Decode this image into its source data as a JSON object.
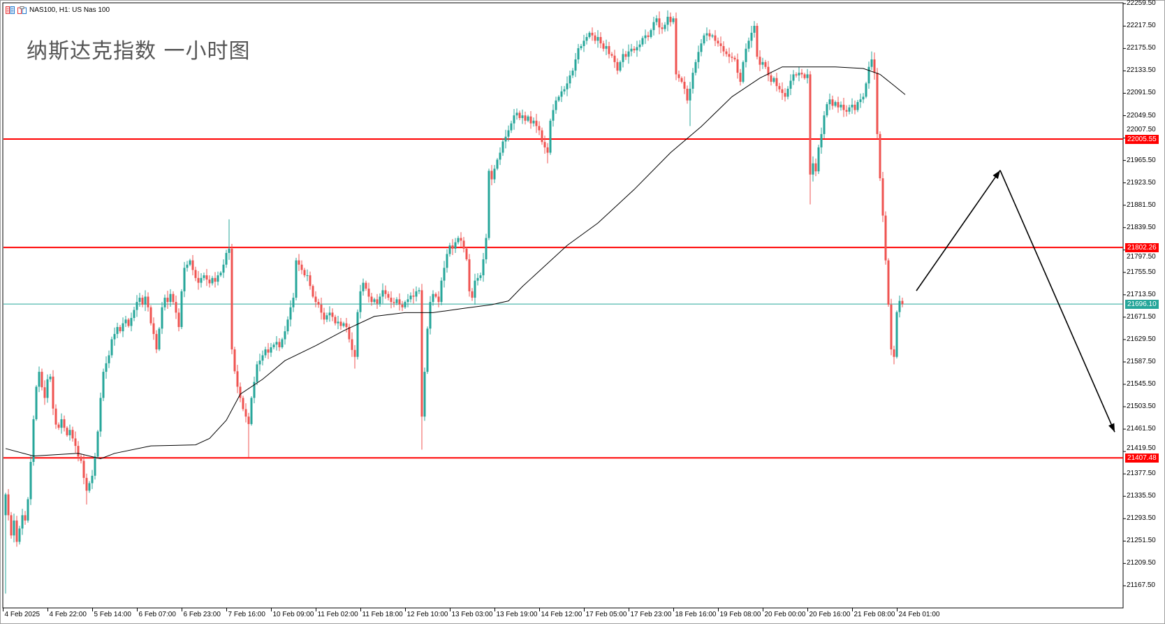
{
  "window": {
    "symbol_title": "NAS100, H1:  US Nas 100",
    "headline": "纳斯达克指数 一小时图"
  },
  "colors": {
    "bull": "#26a69a",
    "bear": "#ef5350",
    "level": "#ff0000",
    "current": "#26a69a",
    "ma": "#000000"
  },
  "chart_data": {
    "type": "candlestick",
    "timeframe": "H1",
    "ylim": [
      21147,
      22262
    ],
    "y_ticks": [
      "22259.50",
      "22217.50",
      "22175.50",
      "22133.50",
      "22091.50",
      "22049.50",
      "22007.50",
      "21965.50",
      "21923.50",
      "21881.50",
      "21839.50",
      "21797.50",
      "21755.50",
      "21713.50",
      "21671.50",
      "21629.50",
      "21587.50",
      "21545.50",
      "21503.50",
      "21461.50",
      "21419.50",
      "21377.50",
      "21335.50",
      "21293.50",
      "21251.50",
      "21209.50",
      "21167.50"
    ],
    "x_ticks": [
      "4 Feb 2025",
      "4 Feb 22:00",
      "5 Feb 14:00",
      "6 Feb 07:00",
      "6 Feb 23:00",
      "7 Feb 16:00",
      "10 Feb 09:00",
      "11 Feb 02:00",
      "11 Feb 18:00",
      "12 Feb 10:00",
      "13 Feb 03:00",
      "13 Feb 19:00",
      "14 Feb 12:00",
      "17 Feb 05:00",
      "17 Feb 23:00",
      "18 Feb 16:00",
      "19 Feb 08:00",
      "20 Feb 00:00",
      "20 Feb 16:00",
      "21 Feb 08:00",
      "24 Feb 01:00"
    ],
    "first_open": 21300,
    "closes": [
      21339,
      21300,
      21262,
      21290,
      21250,
      21275,
      21300,
      21290,
      21330,
      21400,
      21480,
      21541,
      21569,
      21540,
      21520,
      21555,
      21560,
      21500,
      21470,
      21464,
      21480,
      21464,
      21450,
      21460,
      21444,
      21430,
      21410,
      21402,
      21370,
      21346,
      21360,
      21374,
      21410,
      21457,
      21520,
      21569,
      21585,
      21600,
      21630,
      21640,
      21653,
      21645,
      21660,
      21667,
      21655,
      21670,
      21685,
      21700,
      21708,
      21695,
      21710,
      21690,
      21660,
      21640,
      21611,
      21650,
      21690,
      21708,
      21700,
      21715,
      21700,
      21680,
      21653,
      21720,
      21764,
      21770,
      21778,
      21760,
      21745,
      21736,
      21745,
      21750,
      21742,
      21735,
      21745,
      21738,
      21750,
      21755,
      21770,
      21792,
      21800,
      21611,
      21570,
      21541,
      21520,
      21499,
      21485,
      21471,
      21520,
      21550,
      21583,
      21590,
      21600,
      21611,
      21605,
      21615,
      21620,
      21625,
      21615,
      21630,
      21645,
      21667,
      21690,
      21708,
      21778,
      21770,
      21760,
      21750,
      21750,
      21730,
      21710,
      21700,
      21695,
      21680,
      21667,
      21675,
      21680,
      21672,
      21660,
      21663,
      21655,
      21660,
      21653,
      21630,
      21610,
      21597,
      21681,
      21720,
      21736,
      21725,
      21710,
      21700,
      21705,
      21697,
      21710,
      21722,
      21715,
      21708,
      21700,
      21698,
      21705,
      21695,
      21690,
      21700,
      21705,
      21712,
      21710,
      21720,
      21722,
      21485,
      21569,
      21650,
      21700,
      21715,
      21710,
      21700,
      21740,
      21764,
      21790,
      21806,
      21800,
      21812,
      21820,
      21815,
      21800,
      21780,
      21720,
      21708,
      21740,
      21745,
      21750,
      21780,
      21820,
      21946,
      21930,
      21950,
      21967,
      21980,
      22001,
      22010,
      22022,
      22035,
      22050,
      22055,
      22045,
      22050,
      22040,
      22048,
      22035,
      22040,
      22030,
      22022,
      22000,
      21990,
      21980,
      22040,
      22060,
      22078,
      22085,
      22095,
      22099,
      22110,
      22125,
      22134,
      22155,
      22176,
      22180,
      22190,
      22197,
      22205,
      22200,
      22190,
      22197,
      22185,
      22175,
      22180,
      22165,
      22162,
      22150,
      22134,
      22150,
      22165,
      22160,
      22170,
      22175,
      22172,
      22178,
      22183,
      22195,
      22200,
      22197,
      22210,
      22225,
      22232,
      22215,
      22212,
      22220,
      22235,
      22225,
      22232,
      22127,
      22120,
      22113,
      22100,
      22078,
      22100,
      22130,
      22150,
      22169,
      22185,
      22200,
      22204,
      22198,
      22200,
      22190,
      22185,
      22180,
      22170,
      22165,
      22160,
      22158,
      22155,
      22130,
      22113,
      22150,
      22175,
      22190,
      22205,
      22218,
      22160,
      22145,
      22150,
      22141,
      22125,
      22113,
      22120,
      22105,
      22099,
      22092,
      22085,
      22100,
      22115,
      22127,
      22125,
      22130,
      22127,
      22120,
      22127,
      21939,
      21960,
      21945,
      21990,
      22015,
      22050,
      22071,
      22080,
      22068,
      22075,
      22065,
      22070,
      22060,
      22057,
      22065,
      22070,
      22060,
      22075,
      22080,
      22085,
      22110,
      22141,
      22155,
      22130,
      22015,
      21932,
      21862,
      21778,
      21695,
      21611,
      21597,
      21681,
      21702,
      21696.1
    ],
    "notable_wicks": [
      {
        "bar": 0,
        "low": 21153
      },
      {
        "bar": 29,
        "low": 21320
      },
      {
        "bar": 80,
        "high": 21855
      },
      {
        "bar": 87,
        "low": 21409
      },
      {
        "bar": 125,
        "low": 21575
      },
      {
        "bar": 149,
        "low": 21423
      },
      {
        "bar": 194,
        "low": 21960
      },
      {
        "bar": 245,
        "low": 22030
      },
      {
        "bar": 288,
        "low": 21883
      },
      {
        "bar": 310,
        "high": 22170
      },
      {
        "bar": 318,
        "low": 21583
      }
    ],
    "moving_average": [
      [
        0,
        21425
      ],
      [
        10,
        21411
      ],
      [
        26,
        21416
      ],
      [
        34,
        21406
      ],
      [
        39,
        21416
      ],
      [
        52,
        21430
      ],
      [
        68,
        21432
      ],
      [
        73,
        21444
      ],
      [
        79,
        21478
      ],
      [
        84,
        21527
      ],
      [
        92,
        21555
      ],
      [
        100,
        21590
      ],
      [
        111,
        21618
      ],
      [
        121,
        21646
      ],
      [
        132,
        21673
      ],
      [
        143,
        21680
      ],
      [
        153,
        21680
      ],
      [
        164,
        21688
      ],
      [
        174,
        21695
      ],
      [
        180,
        21702
      ],
      [
        185,
        21729
      ],
      [
        201,
        21806
      ],
      [
        212,
        21848
      ],
      [
        225,
        21911
      ],
      [
        238,
        21980
      ],
      [
        249,
        22029
      ],
      [
        260,
        22085
      ],
      [
        270,
        22120
      ],
      [
        278,
        22141
      ],
      [
        286,
        22141
      ],
      [
        297,
        22141
      ],
      [
        307,
        22138
      ],
      [
        313,
        22127
      ],
      [
        318,
        22106
      ],
      [
        322,
        22089
      ]
    ],
    "levels": [
      {
        "price": 22005.55,
        "label": "22005.55",
        "color": "#ff0000"
      },
      {
        "price": 21802.26,
        "label": "21802.26",
        "color": "#ff0000"
      },
      {
        "price": 21407.48,
        "label": "21407.48",
        "color": "#ff0000"
      }
    ],
    "current_price": {
      "price": 21696.1,
      "label": "21696.10",
      "color": "#26a69a"
    },
    "projection_arrows": [
      {
        "from": [
          326,
          21721
        ],
        "to": [
          356,
          21947
        ]
      },
      {
        "from": [
          356,
          21947
        ],
        "to": [
          397,
          21456
        ]
      }
    ]
  }
}
